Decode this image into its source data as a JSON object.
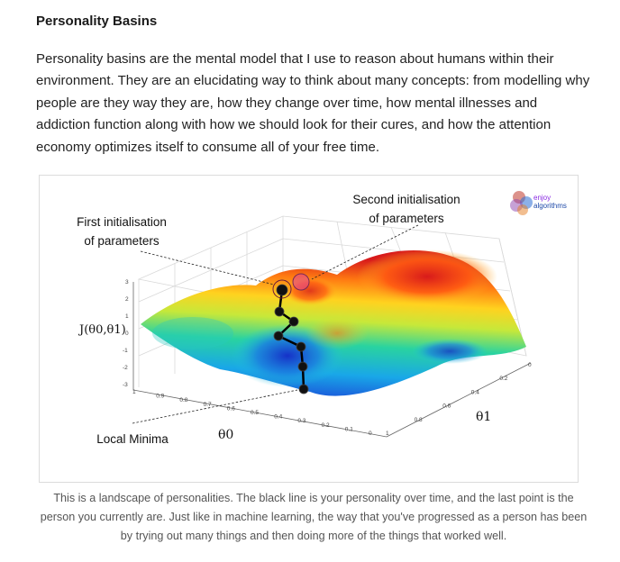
{
  "article": {
    "title": "Personality Basins",
    "paragraph": "Personality basins are the mental model that I use to reason about humans within their environment. They are an elucidating way to think about many concepts: from modelling why people are they way they are, how they change over time, how mental illnesses and addiction function along with how we should look for their cures, and how the attention economy optimizes itself to consume all of your free time."
  },
  "figure": {
    "annotations": {
      "first_init": [
        "First initialisation",
        "of parameters"
      ],
      "second_init": [
        "Second initialisation",
        "of parameters"
      ],
      "local_minima": "Local Minima"
    },
    "axis_labels": {
      "z": "J(θ0,θ1)",
      "theta0": "θ0",
      "theta1": "θ1"
    },
    "z_ticks": [
      "3",
      "2",
      "1",
      "0",
      "-1",
      "-2",
      "-3"
    ],
    "theta0_ticks": [
      "1",
      "0.9",
      "0.8",
      "0.7",
      "0.6",
      "0.5",
      "0.4",
      "0.3",
      "0.2",
      "0.1",
      "0"
    ],
    "theta1_ticks": [
      "0",
      "0.2",
      "0.4",
      "0.6",
      "0.8",
      "1"
    ],
    "logo": {
      "line1": "enjoy",
      "line2": "algorithms"
    },
    "colors": {
      "path": "#000000",
      "low": "#1a3fd6",
      "high": "#d81b1b"
    }
  },
  "caption": "This is a landscape of personalities. The black line is your personality over time, and the last point is the person you currently are. Just like in machine learning, the way that you've progressed as a person has been by trying out many things and then doing more of the things that worked well."
}
